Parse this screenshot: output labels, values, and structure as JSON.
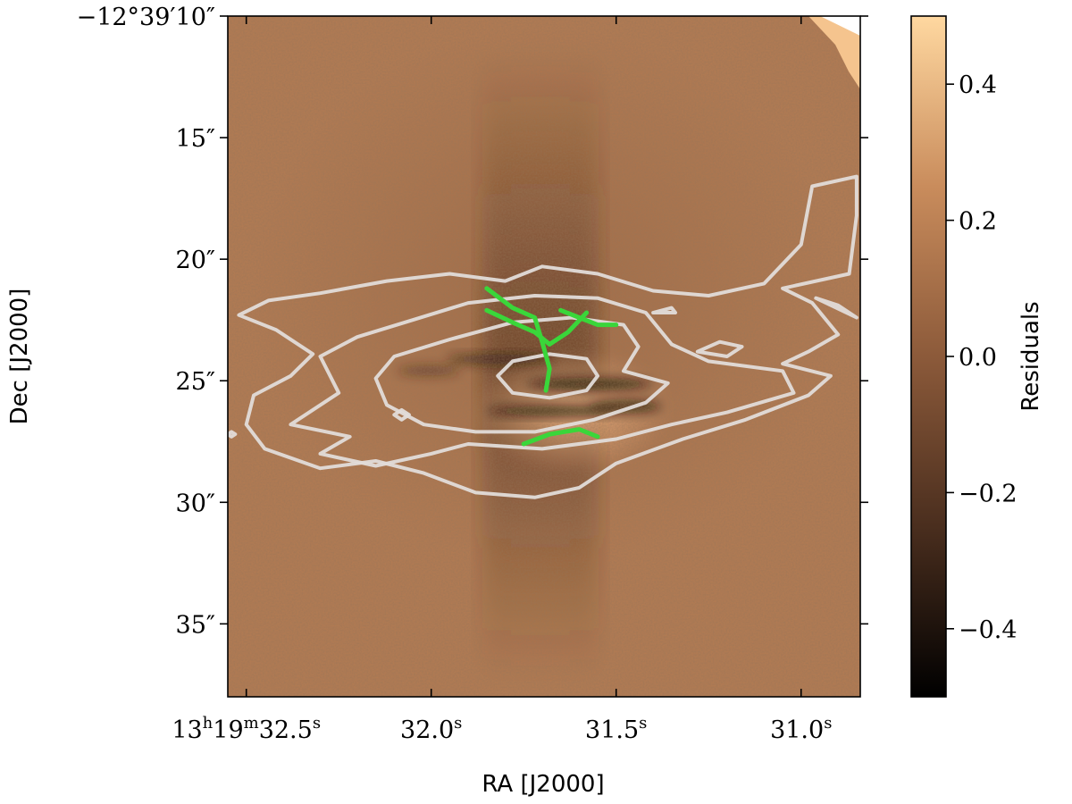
{
  "chart_data": {
    "type": "heatmap",
    "title": "",
    "xlabel": "RA [J2000]",
    "ylabel": "Dec [J2000]",
    "x_ticks": [
      {
        "value": 32.5,
        "hms": {
          "h": "13",
          "m": "19",
          "s": "32.5"
        }
      },
      {
        "value": 32.0,
        "hms": {
          "h": "",
          "m": "",
          "s": "32.0"
        }
      },
      {
        "value": 31.5,
        "hms": {
          "h": "",
          "m": "",
          "s": "31.5"
        }
      },
      {
        "value": 31.0,
        "hms": {
          "h": "",
          "m": "",
          "s": "31.0"
        }
      }
    ],
    "y_ticks": [
      {
        "value": 10,
        "label": "−12°39′10″"
      },
      {
        "value": 15,
        "label": "15″"
      },
      {
        "value": 20,
        "label": "20″"
      },
      {
        "value": 25,
        "label": "25″"
      },
      {
        "value": 30,
        "label": "30″"
      },
      {
        "value": 35,
        "label": "35″"
      }
    ],
    "xlim": [
      32.55,
      30.84
    ],
    "ylim": [
      38.0,
      10.0
    ],
    "colorbar": {
      "label": "Residuals",
      "range": [
        -0.5,
        0.5
      ],
      "ticks": [
        {
          "value": 0.4,
          "label": "0.4"
        },
        {
          "value": 0.2,
          "label": "0.2"
        },
        {
          "value": 0.0,
          "label": "0.0"
        },
        {
          "value": -0.2,
          "label": "−0.2"
        },
        {
          "value": -0.4,
          "label": "−0.4"
        }
      ],
      "colormap": [
        "#000000",
        "#4a2e1e",
        "#8c5a3a",
        "#c98c5c",
        "#ffd8a0"
      ]
    },
    "image_background_color": "#b07a53",
    "contour_color": "#e1dcd9",
    "overlay_color": "#3ad63a",
    "contours": [
      {
        "level": 1,
        "points": [
          [
            32.44,
            21.7
          ],
          [
            32.3,
            21.4
          ],
          [
            32.12,
            20.9
          ],
          [
            31.95,
            20.6
          ],
          [
            31.8,
            20.9
          ],
          [
            31.7,
            20.3
          ],
          [
            31.55,
            20.6
          ],
          [
            31.4,
            21.3
          ],
          [
            31.25,
            21.5
          ],
          [
            31.1,
            21.0
          ],
          [
            31.0,
            19.4
          ],
          [
            30.97,
            17.0
          ],
          [
            30.85,
            16.6
          ],
          [
            30.85,
            18.2
          ],
          [
            30.87,
            20.6
          ],
          [
            31.05,
            21.2
          ],
          [
            30.97,
            21.8
          ],
          [
            30.9,
            23.1
          ],
          [
            30.98,
            23.8
          ],
          [
            31.05,
            24.3
          ],
          [
            30.92,
            24.8
          ],
          [
            30.98,
            25.6
          ],
          [
            31.15,
            26.6
          ],
          [
            31.32,
            27.4
          ],
          [
            31.5,
            28.4
          ],
          [
            31.6,
            29.4
          ],
          [
            31.72,
            29.8
          ],
          [
            31.88,
            29.6
          ],
          [
            32.02,
            28.8
          ],
          [
            32.15,
            28.3
          ],
          [
            32.3,
            28.6
          ],
          [
            32.45,
            27.8
          ],
          [
            32.5,
            26.8
          ],
          [
            32.48,
            25.6
          ],
          [
            32.38,
            24.8
          ],
          [
            32.32,
            23.9
          ],
          [
            32.42,
            22.9
          ],
          [
            32.52,
            22.3
          ]
        ]
      },
      {
        "level": 2,
        "points": [
          [
            32.2,
            23.2
          ],
          [
            32.05,
            22.5
          ],
          [
            31.9,
            21.8
          ],
          [
            31.72,
            21.5
          ],
          [
            31.55,
            21.6
          ],
          [
            31.42,
            22.2
          ],
          [
            31.35,
            23.5
          ],
          [
            31.25,
            24.2
          ],
          [
            31.05,
            24.6
          ],
          [
            31.02,
            25.5
          ],
          [
            31.2,
            26.3
          ],
          [
            31.35,
            26.8
          ],
          [
            31.5,
            27.4
          ],
          [
            31.7,
            27.8
          ],
          [
            31.9,
            27.6
          ],
          [
            32.0,
            28.0
          ],
          [
            32.15,
            28.5
          ],
          [
            32.3,
            28.0
          ],
          [
            32.22,
            27.3
          ],
          [
            32.38,
            26.8
          ],
          [
            32.25,
            25.5
          ],
          [
            32.3,
            24.0
          ]
        ]
      },
      {
        "level": 3,
        "points": [
          [
            32.1,
            24.0
          ],
          [
            31.95,
            23.3
          ],
          [
            31.78,
            22.6
          ],
          [
            31.62,
            22.4
          ],
          [
            31.48,
            22.7
          ],
          [
            31.44,
            23.6
          ],
          [
            31.48,
            24.6
          ],
          [
            31.36,
            25.1
          ],
          [
            31.42,
            25.9
          ],
          [
            31.56,
            26.6
          ],
          [
            31.72,
            27.1
          ],
          [
            31.88,
            27.1
          ],
          [
            32.02,
            26.8
          ],
          [
            32.12,
            26.0
          ],
          [
            32.15,
            24.9
          ]
        ]
      },
      {
        "level": 4,
        "points": [
          [
            31.78,
            24.2
          ],
          [
            31.68,
            23.9
          ],
          [
            31.58,
            24.1
          ],
          [
            31.55,
            24.8
          ],
          [
            31.58,
            25.4
          ],
          [
            31.68,
            25.7
          ],
          [
            31.78,
            25.5
          ],
          [
            31.82,
            24.8
          ]
        ]
      },
      {
        "level": 5,
        "points": [
          [
            32.1,
            26.4
          ],
          [
            32.08,
            26.2
          ],
          [
            32.06,
            26.4
          ],
          [
            32.08,
            26.6
          ]
        ]
      },
      {
        "level": 6,
        "points": [
          [
            32.55,
            27.2
          ],
          [
            32.54,
            27.1
          ],
          [
            32.53,
            27.2
          ],
          [
            32.54,
            27.3
          ]
        ]
      },
      {
        "level": 7,
        "points": [
          [
            31.4,
            22.2
          ],
          [
            31.35,
            22.0
          ],
          [
            31.34,
            22.2
          ]
        ]
      },
      {
        "level": 8,
        "points": [
          [
            31.28,
            23.8
          ],
          [
            31.22,
            23.4
          ],
          [
            31.16,
            23.6
          ],
          [
            31.2,
            24.0
          ]
        ]
      },
      {
        "level": 9,
        "points": [
          [
            30.85,
            22.4
          ],
          [
            30.9,
            21.9
          ],
          [
            30.96,
            21.6
          ]
        ]
      }
    ],
    "overlay_paths": [
      {
        "id": 1,
        "points": [
          [
            31.85,
            21.2
          ],
          [
            31.78,
            22.0
          ],
          [
            31.72,
            22.4
          ],
          [
            31.7,
            23.4
          ],
          [
            31.68,
            24.5
          ],
          [
            31.69,
            25.4
          ]
        ]
      },
      {
        "id": 2,
        "points": [
          [
            31.85,
            22.1
          ],
          [
            31.78,
            22.6
          ],
          [
            31.72,
            23.0
          ],
          [
            31.68,
            23.5
          ],
          [
            31.63,
            23.0
          ],
          [
            31.58,
            22.2
          ]
        ]
      },
      {
        "id": 3,
        "points": [
          [
            31.65,
            22.1
          ],
          [
            31.6,
            22.4
          ],
          [
            31.55,
            22.7
          ],
          [
            31.5,
            22.7
          ]
        ]
      },
      {
        "id": 4,
        "points": [
          [
            31.75,
            27.6
          ],
          [
            31.68,
            27.2
          ],
          [
            31.6,
            27.0
          ],
          [
            31.55,
            27.3
          ]
        ]
      }
    ]
  }
}
